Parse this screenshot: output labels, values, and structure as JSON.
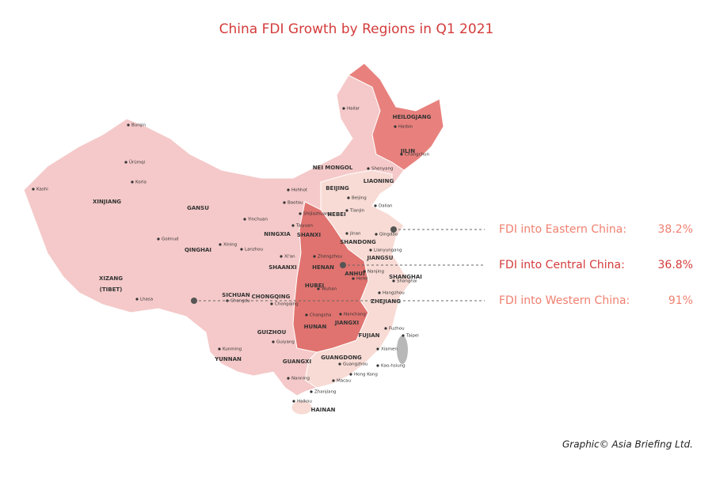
{
  "title": "China FDI Growth by Regions in Q1 2021",
  "regions": [
    {
      "label": "HEILOGJANG"
    },
    {
      "label": "JILIN"
    },
    {
      "label": "LIAONING"
    },
    {
      "label": "NEI MONGOL"
    },
    {
      "label": "XINJIANG"
    },
    {
      "label": "GANSU"
    },
    {
      "label": "QINGHAI"
    },
    {
      "label": "XIZANG"
    },
    {
      "label": "(TIBET)"
    },
    {
      "label": "NINGXIA"
    },
    {
      "label": "SHANXI"
    },
    {
      "label": "HEBEI"
    },
    {
      "label": "SHANDONG"
    },
    {
      "label": "JIANGSU"
    },
    {
      "label": "HENAN"
    },
    {
      "label": "ANHUI"
    },
    {
      "label": "SHAANXI"
    },
    {
      "label": "HUBEI"
    },
    {
      "label": "SHANGHAI"
    },
    {
      "label": "ZHEJIANG"
    },
    {
      "label": "SICHUAN"
    },
    {
      "label": "CHONGQING"
    },
    {
      "label": "HUNAN"
    },
    {
      "label": "JIANGXI"
    },
    {
      "label": "FUJIAN"
    },
    {
      "label": "GUIZHOU"
    },
    {
      "label": "YUNNAN"
    },
    {
      "label": "GUANGXI"
    },
    {
      "label": "GUANGDONG"
    },
    {
      "label": "HAINAN"
    },
    {
      "label": "BEIJING"
    }
  ],
  "cities": [
    {
      "label": "Burqin"
    },
    {
      "label": "Ürümqi"
    },
    {
      "label": "Kashi"
    },
    {
      "label": "Korla"
    },
    {
      "label": "Hailar"
    },
    {
      "label": "Harbin"
    },
    {
      "label": "Changchun"
    },
    {
      "label": "Shenyang"
    },
    {
      "label": "Dalian"
    },
    {
      "label": "Hohhot"
    },
    {
      "label": "Baotou"
    },
    {
      "label": "Beijing"
    },
    {
      "label": "Tianjin"
    },
    {
      "label": "Yinchuan"
    },
    {
      "label": "Shijiazhuang"
    },
    {
      "label": "Taiyuan"
    },
    {
      "label": "Jinan"
    },
    {
      "label": "Qingdao"
    },
    {
      "label": "Golmud"
    },
    {
      "label": "Xining"
    },
    {
      "label": "Lanzhou"
    },
    {
      "label": "Xi'an"
    },
    {
      "label": "Zhengzhou"
    },
    {
      "label": "Lianyungang"
    },
    {
      "label": "Nanjing"
    },
    {
      "label": "Hefei"
    },
    {
      "label": "Shanghai"
    },
    {
      "label": "Wuhan"
    },
    {
      "label": "Hangzhou"
    },
    {
      "label": "Lhasa"
    },
    {
      "label": "Chengdu"
    },
    {
      "label": "Chongqing"
    },
    {
      "label": "Changsha"
    },
    {
      "label": "Nanchang"
    },
    {
      "label": "Fuzhou"
    },
    {
      "label": "Guiyang"
    },
    {
      "label": "Kunming"
    },
    {
      "label": "Xiamen"
    },
    {
      "label": "Taipei"
    },
    {
      "label": "Kao-hsiung"
    },
    {
      "label": "Guangzhou"
    },
    {
      "label": "Hong Kong"
    },
    {
      "label": "Macau"
    },
    {
      "label": "Nanning"
    },
    {
      "label": "Zhanjiang"
    },
    {
      "label": "Haikou"
    }
  ],
  "callouts": [
    {
      "label": "FDI into Eastern China:",
      "value": "38.2%"
    },
    {
      "label": "FDI into Central China:",
      "value": "36.8%"
    },
    {
      "label": "FDI into Western China:",
      "value": "91%"
    }
  ],
  "credit": "Graphic© Asia Briefing Ltd."
}
